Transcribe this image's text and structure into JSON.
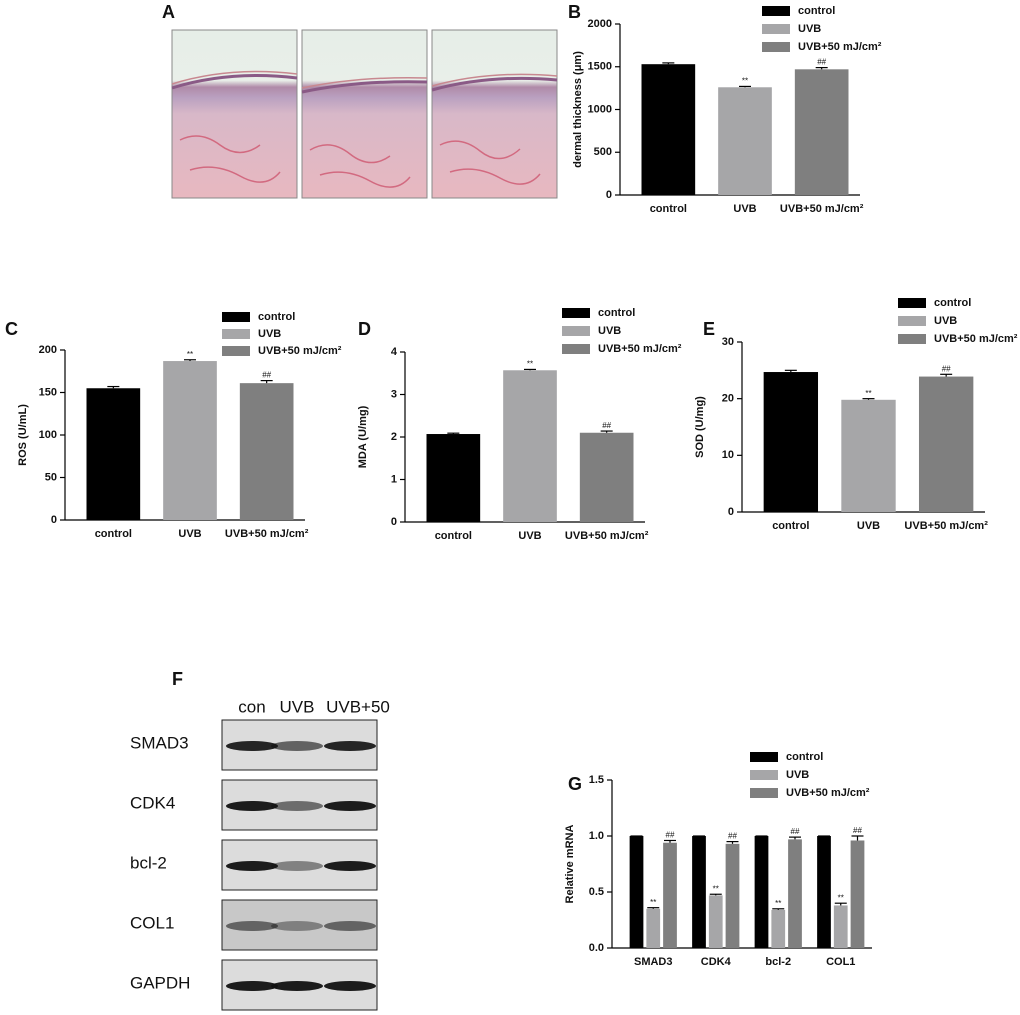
{
  "panel_a": {
    "label": "A"
  },
  "chart_data": [
    {
      "type": "bar",
      "panel": "B",
      "ylabel": "dermal thickness (μm)",
      "categories": [
        "control",
        "UVB",
        "UVB+50 mJ/cm²"
      ],
      "values": [
        1530,
        1260,
        1470
      ],
      "errors": [
        15,
        10,
        20
      ],
      "colors": [
        "#000000",
        "#a6a6a8",
        "#7f7f7f"
      ],
      "annotations": [
        null,
        "**",
        "##"
      ],
      "ylim": [
        0,
        2000
      ],
      "yticks": [
        0,
        500,
        1000,
        1500,
        2000
      ]
    },
    {
      "type": "bar",
      "panel": "C",
      "ylabel": "ROS (U/mL)",
      "categories": [
        "control",
        "UVB",
        "UVB+50 mJ/cm²"
      ],
      "values": [
        155,
        187,
        161
      ],
      "errors": [
        2,
        1.5,
        3
      ],
      "colors": [
        "#000000",
        "#a6a6a8",
        "#7f7f7f"
      ],
      "annotations": [
        null,
        "**",
        "##"
      ],
      "ylim": [
        0,
        200
      ],
      "yticks": [
        0,
        50,
        100,
        150,
        200
      ]
    },
    {
      "type": "bar",
      "panel": "D",
      "ylabel": "MDA (U/mg)",
      "categories": [
        "control",
        "UVB",
        "UVB+50 mJ/cm²"
      ],
      "values": [
        2.07,
        3.57,
        2.1
      ],
      "errors": [
        0.02,
        0.02,
        0.04
      ],
      "colors": [
        "#000000",
        "#a6a6a8",
        "#7f7f7f"
      ],
      "annotations": [
        null,
        "**",
        "##"
      ],
      "ylim": [
        0,
        4
      ],
      "yticks": [
        0,
        1,
        2,
        3,
        4
      ]
    },
    {
      "type": "bar",
      "panel": "E",
      "ylabel": "SOD (U/mg)",
      "categories": [
        "control",
        "UVB",
        "UVB+50 mJ/cm²"
      ],
      "values": [
        24.7,
        19.8,
        23.9
      ],
      "errors": [
        0.3,
        0.2,
        0.4
      ],
      "colors": [
        "#000000",
        "#a6a6a8",
        "#7f7f7f"
      ],
      "annotations": [
        null,
        "**",
        "##"
      ],
      "ylim": [
        0,
        30
      ],
      "yticks": [
        0,
        10,
        20,
        30
      ]
    },
    {
      "type": "grouped-bar",
      "panel": "G",
      "ylabel": "Relative mRNA",
      "categories": [
        "SMAD3",
        "CDK4",
        "bcl-2",
        "COL1"
      ],
      "series": [
        {
          "name": "control",
          "color": "#000000",
          "values": [
            1,
            1,
            1,
            1
          ],
          "errors": [
            0,
            0,
            0,
            0
          ],
          "annotations": [
            null,
            null,
            null,
            null
          ]
        },
        {
          "name": "UVB",
          "color": "#a6a6a8",
          "values": [
            0.35,
            0.47,
            0.34,
            0.38
          ],
          "errors": [
            0.01,
            0.01,
            0.01,
            0.02
          ],
          "annotations": [
            "**",
            "**",
            "**",
            "**"
          ]
        },
        {
          "name": "UVB+50 mJ/cm²",
          "color": "#7f7f7f",
          "values": [
            0.94,
            0.93,
            0.97,
            0.96
          ],
          "errors": [
            0.02,
            0.02,
            0.02,
            0.04
          ],
          "annotations": [
            "##",
            "##",
            "##",
            "##"
          ]
        }
      ],
      "ylim": [
        0,
        1.5
      ],
      "yticks": [
        {
          "value": 0,
          "label": "0.0"
        },
        0.5,
        {
          "value": 1,
          "label": "1.0"
        },
        1.5
      ]
    }
  ],
  "panel_f": {
    "label": "F",
    "lanes": [
      "con",
      "UVB",
      "UVB+50"
    ],
    "rows": [
      "SMAD3",
      "CDK4",
      "bcl-2",
      "COL1",
      "GAPDH"
    ]
  }
}
